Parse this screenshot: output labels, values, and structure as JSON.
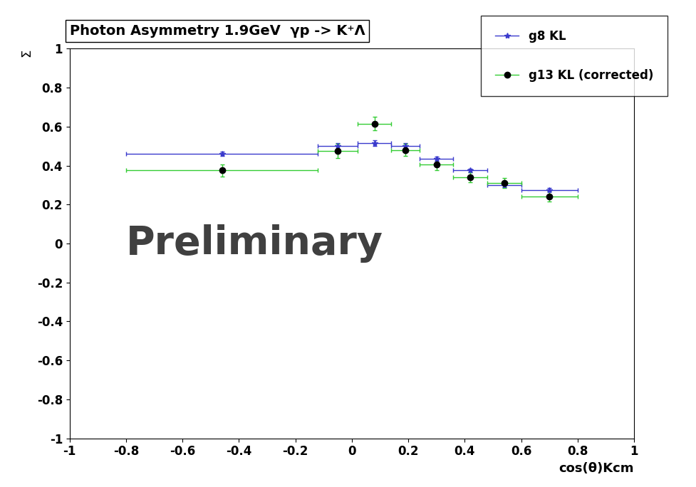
{
  "chart_data": {
    "type": "scatter",
    "title": "Photon Asymmetry 1.9GeV  γp -> K⁺Λ",
    "x_label": "cos(θ)Kcm",
    "y_label": "Σ",
    "annotation": "Preliminary",
    "xlim": [
      -1,
      1
    ],
    "ylim": [
      -1,
      1
    ],
    "xticks": [
      -1,
      -0.8,
      -0.6,
      -0.4,
      -0.2,
      0,
      0.2,
      0.4,
      0.6,
      0.8,
      1
    ],
    "yticks": [
      -1,
      -0.8,
      -0.6,
      -0.4,
      -0.2,
      0,
      0.2,
      0.4,
      0.6,
      0.8,
      1
    ],
    "legend": "upper right",
    "series": [
      {
        "name": "g8 KL",
        "color": "#3a3acc",
        "marker": "star",
        "x": [
          -0.46,
          -0.05,
          0.08,
          0.19,
          0.3,
          0.42,
          0.54,
          0.7
        ],
        "xerr": [
          0.34,
          0.07,
          0.06,
          0.05,
          0.06,
          0.06,
          0.06,
          0.1
        ],
        "values": [
          0.46,
          0.5,
          0.515,
          0.5,
          0.435,
          0.375,
          0.3,
          0.275
        ],
        "yerr": [
          0.01,
          0.015,
          0.015,
          0.015,
          0.01,
          0.01,
          0.01,
          0.01
        ]
      },
      {
        "name": "g13 KL (corrected)",
        "color": "#33cc33",
        "marker": "circle",
        "x": [
          -0.46,
          -0.05,
          0.08,
          0.19,
          0.3,
          0.42,
          0.54,
          0.7
        ],
        "xerr": [
          0.34,
          0.07,
          0.06,
          0.05,
          0.06,
          0.06,
          0.06,
          0.1
        ],
        "values": [
          0.375,
          0.475,
          0.615,
          0.48,
          0.405,
          0.34,
          0.31,
          0.24
        ],
        "yerr": [
          0.03,
          0.035,
          0.035,
          0.03,
          0.03,
          0.025,
          0.025,
          0.025
        ]
      }
    ]
  }
}
